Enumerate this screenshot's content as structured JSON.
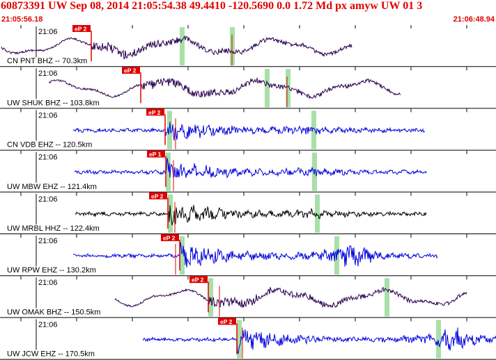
{
  "header": {
    "title": "60873391 UW Sep 08, 2014 21:05:54.38   49.4410 -120.5690  0.0 1.72 Md px amyw UW 01   3",
    "start_time": "21:05:56.18",
    "end_time": "21:06:48.94"
  },
  "colors": {
    "header_text": "#e00000",
    "trace_blue": "#0000dd",
    "trace_purple": "#2a0050",
    "trace_black": "#000000",
    "pick_red": "#e00000",
    "window_green": "#a8e0a8"
  },
  "minute_label": "21:06",
  "channels": [
    {
      "label": "CN PNT BHZ -- 70.3km",
      "pick": "eP 2",
      "trace_color": "purple",
      "style": "long_period"
    },
    {
      "label": "UW SHUK BHZ -- 103.8km",
      "pick": "eP 2",
      "trace_color": "purple",
      "style": "long_period"
    },
    {
      "label": "CN VDB EHZ -- 120.5km",
      "pick": "eP 2",
      "trace_color": "blue",
      "style": "short_period"
    },
    {
      "label": "UW MBW EHZ -- 121.4km",
      "pick": "eP 1",
      "trace_color": "blue",
      "style": "short_period"
    },
    {
      "label": "UW MRBL HHZ -- 122.4km",
      "pick": "eP 2",
      "trace_color": "black",
      "style": "short_period"
    },
    {
      "label": "UW RPW EHZ -- 130.2km",
      "pick": "eP 2",
      "trace_color": "blue",
      "style": "short_period"
    },
    {
      "label": "UW OMAK BHZ -- 150.5km",
      "pick": "eP 2",
      "trace_color": "purple",
      "style": "long_period"
    },
    {
      "label": "UW JCW EHZ -- 170.5km",
      "pick": "eP 2",
      "trace_color": "blue",
      "style": "short_period"
    }
  ]
}
